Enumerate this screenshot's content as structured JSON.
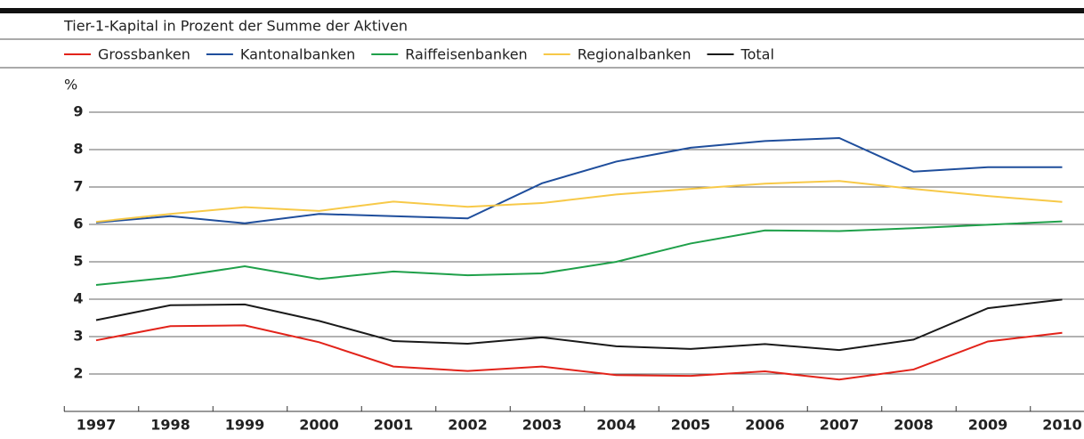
{
  "chart_data": {
    "type": "line",
    "subtitle": "Tier-1-Kapital in Prozent der Summe der Aktiven",
    "y_unit": "%",
    "categories": [
      "1997",
      "1998",
      "1999",
      "2000",
      "2001",
      "2002",
      "2003",
      "2004",
      "2005",
      "2006",
      "2007",
      "2008",
      "2009",
      "2010"
    ],
    "series": [
      {
        "name": "Grossbanken",
        "color": "#e2231a",
        "values": [
          2.9,
          3.28,
          3.3,
          2.85,
          2.2,
          2.08,
          2.2,
          1.97,
          1.95,
          2.07,
          1.85,
          2.12,
          2.87,
          3.1
        ]
      },
      {
        "name": "Kantonalbanken",
        "color": "#1f4e9c",
        "values": [
          6.05,
          6.22,
          6.03,
          6.28,
          6.22,
          6.16,
          7.1,
          7.68,
          8.05,
          8.23,
          8.31,
          7.41,
          7.53,
          7.53
        ]
      },
      {
        "name": "Raiffeisenbanken",
        "color": "#1fa04a",
        "values": [
          4.38,
          4.58,
          4.88,
          4.54,
          4.74,
          4.64,
          4.69,
          5.0,
          5.49,
          5.84,
          5.82,
          5.9,
          5.99,
          6.08
        ]
      },
      {
        "name": "Regionalbanken",
        "color": "#f7c948",
        "values": [
          6.07,
          6.28,
          6.46,
          6.36,
          6.61,
          6.47,
          6.57,
          6.8,
          6.95,
          7.09,
          7.16,
          6.95,
          6.76,
          6.6
        ]
      },
      {
        "name": "Total",
        "color": "#1a1a1a",
        "values": [
          3.44,
          3.84,
          3.86,
          3.42,
          2.88,
          2.81,
          2.98,
          2.74,
          2.67,
          2.8,
          2.64,
          2.92,
          3.76,
          3.99
        ]
      }
    ],
    "ylim": [
      1,
      9
    ],
    "yticks": [
      2,
      3,
      4,
      5,
      6,
      7,
      8,
      9
    ],
    "grid": true
  }
}
